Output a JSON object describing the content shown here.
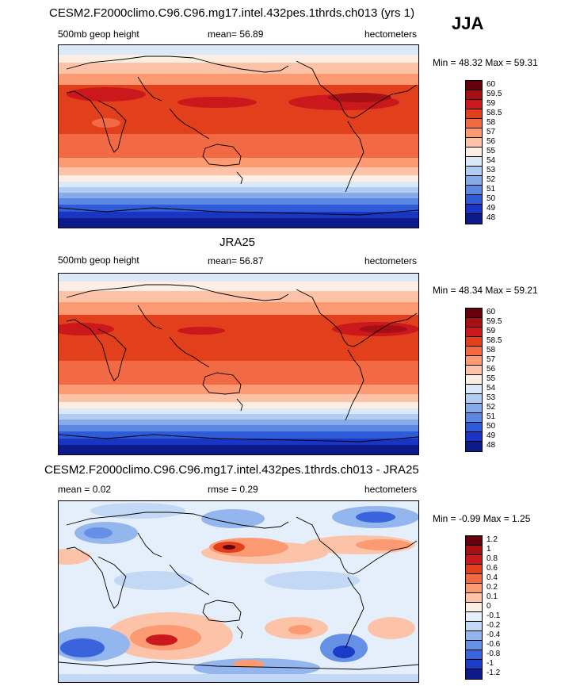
{
  "season": "JJA",
  "panels": [
    {
      "title": "CESM2.F2000climo.C96.C96.mg17.intel.432pes.1thrds.ch013 (yrs 1)",
      "variable": "500mb geop height",
      "mean_label": "mean=",
      "mean_value": "56.89",
      "units": "hectometers",
      "minmax": "Min =  48.32 Max =  59.31",
      "legend": [
        "60",
        "59.5",
        "59",
        "58.5",
        "58",
        "57",
        "56",
        "55",
        "54",
        "53",
        "52",
        "51",
        "50",
        "49",
        "48"
      ],
      "legend_colors": [
        "#67000d",
        "#a50f15",
        "#cb181d",
        "#e2401c",
        "#f26a44",
        "#fb9a73",
        "#fcc3a8",
        "#fdeee4",
        "#dbe8f8",
        "#b3cdf2",
        "#86abeb",
        "#5a88e3",
        "#2f5ad8",
        "#1a35c3",
        "#0d1a8a"
      ]
    },
    {
      "title": "JRA25",
      "variable": "500mb geop height",
      "mean_label": "mean=",
      "mean_value": "56.87",
      "units": "hectometers",
      "minmax": "Min =  48.34 Max =  59.21",
      "legend": [
        "60",
        "59.5",
        "59",
        "58.5",
        "58",
        "57",
        "56",
        "55",
        "54",
        "53",
        "52",
        "51",
        "50",
        "49",
        "48"
      ],
      "legend_colors": [
        "#67000d",
        "#a50f15",
        "#cb181d",
        "#e2401c",
        "#f26a44",
        "#fb9a73",
        "#fcc3a8",
        "#fdeee4",
        "#dbe8f8",
        "#b3cdf2",
        "#86abeb",
        "#5a88e3",
        "#2f5ad8",
        "#1a35c3",
        "#0d1a8a"
      ]
    },
    {
      "title": "CESM2.F2000climo.C96.C96.mg17.intel.432pes.1thrds.ch013 - JRA25",
      "mean_label": "mean =",
      "mean_value": "0.02",
      "rmse_label": "rmse =",
      "rmse_value": "0.29",
      "units": "hectometers",
      "minmax": "Min =  -0.99 Max =    1.25",
      "legend": [
        "1.2",
        "1",
        "0.8",
        "0.6",
        "0.4",
        "0.2",
        "0.1",
        "0",
        "-0.1",
        "-0.2",
        "-0.4",
        "-0.6",
        "-0.8",
        "-1",
        "-1.2"
      ],
      "legend_colors": [
        "#67000d",
        "#a50f15",
        "#cb181d",
        "#e2401c",
        "#f26a44",
        "#fb9a73",
        "#fcc3a8",
        "#fdeee4",
        "#e4effb",
        "#c2d8f5",
        "#94b6ee",
        "#6690e5",
        "#3a64db",
        "#1c3bc6",
        "#0d1a8a"
      ]
    }
  ]
}
